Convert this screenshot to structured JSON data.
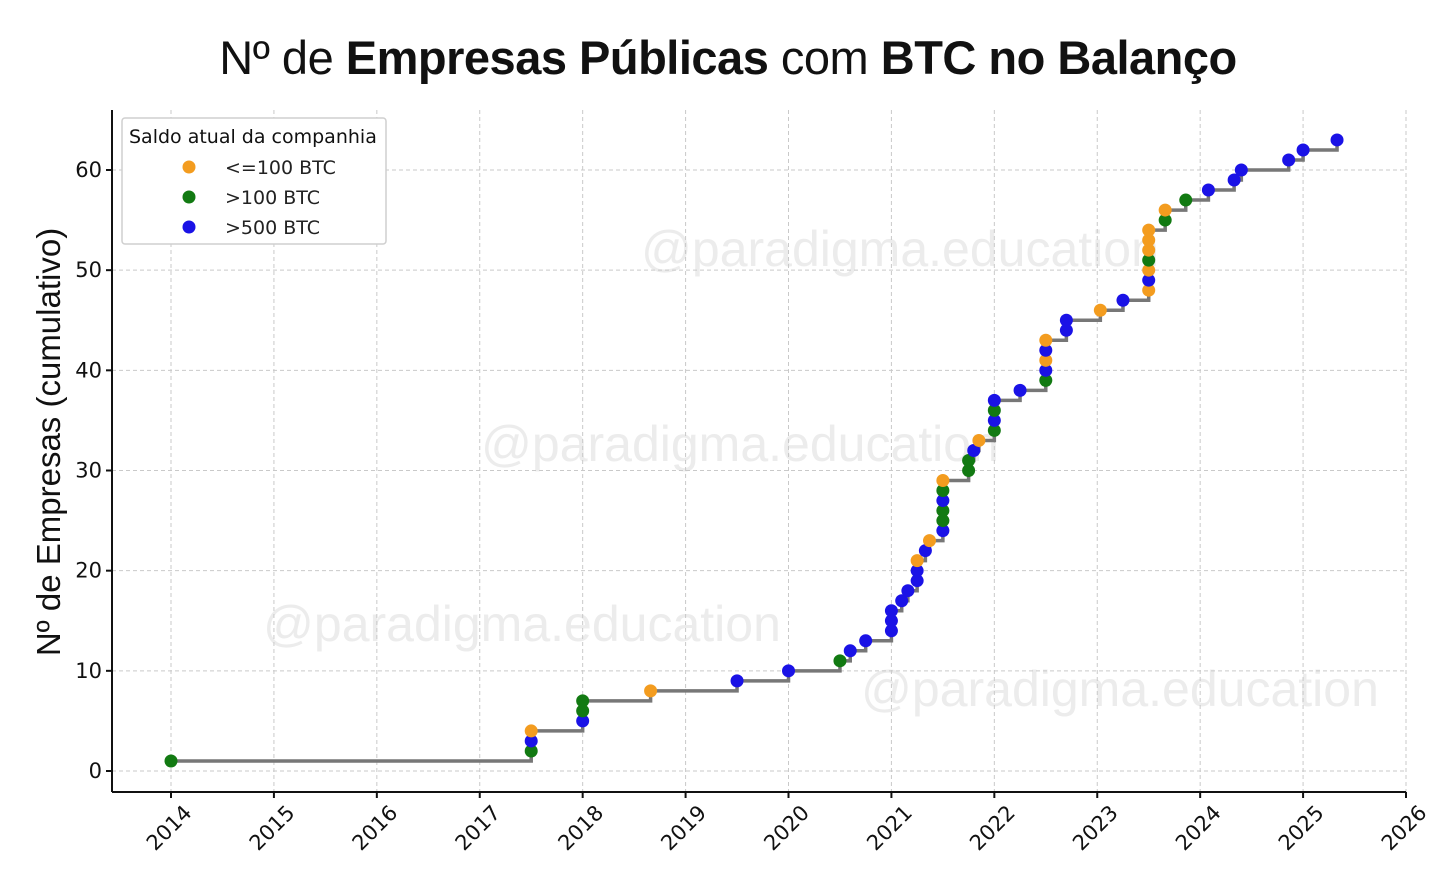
{
  "title": {
    "parts": [
      {
        "text": "Nº de ",
        "bold": false
      },
      {
        "text": "Empresas Públicas",
        "bold": true
      },
      {
        "text": " com ",
        "bold": false
      },
      {
        "text": "BTC no Balanço",
        "bold": true
      }
    ]
  },
  "watermark": "@paradigma.education",
  "colors": {
    "le100": "#f39c1f",
    "gt100": "#127a12",
    "gt500": "#1a12e6",
    "step": "#777777"
  },
  "chart_data": {
    "type": "scatter",
    "ylabel": "Nº de Empresas (cumulativo)",
    "xlim": [
      2013.42,
      2026
    ],
    "ylim": [
      -2,
      66
    ],
    "x_ticks": [
      2014,
      2015,
      2016,
      2017,
      2018,
      2019,
      2020,
      2021,
      2022,
      2023,
      2024,
      2025,
      2026
    ],
    "y_ticks": [
      0,
      10,
      20,
      30,
      40,
      50,
      60
    ],
    "legend": {
      "title": "Saldo atual da companhia",
      "position": "top-left",
      "entries": [
        {
          "key": "le100",
          "label": "<=100 BTC"
        },
        {
          "key": "gt100",
          "label": ">100 BTC"
        },
        {
          "key": "gt500",
          "label": ">500 BTC"
        }
      ]
    },
    "grid": true,
    "points": [
      {
        "x": 2014.0,
        "y": 1,
        "c": "gt100"
      },
      {
        "x": 2017.5,
        "y": 2,
        "c": "gt100"
      },
      {
        "x": 2017.5,
        "y": 3,
        "c": "gt500"
      },
      {
        "x": 2017.5,
        "y": 4,
        "c": "le100"
      },
      {
        "x": 2018.0,
        "y": 5,
        "c": "gt500"
      },
      {
        "x": 2018.0,
        "y": 6,
        "c": "gt100"
      },
      {
        "x": 2018.0,
        "y": 7,
        "c": "gt100"
      },
      {
        "x": 2018.66,
        "y": 8,
        "c": "le100"
      },
      {
        "x": 2019.5,
        "y": 9,
        "c": "gt500"
      },
      {
        "x": 2020.0,
        "y": 10,
        "c": "gt500"
      },
      {
        "x": 2020.5,
        "y": 11,
        "c": "gt100"
      },
      {
        "x": 2020.6,
        "y": 12,
        "c": "gt500"
      },
      {
        "x": 2020.75,
        "y": 13,
        "c": "gt500"
      },
      {
        "x": 2021.0,
        "y": 14,
        "c": "gt500"
      },
      {
        "x": 2021.0,
        "y": 15,
        "c": "gt500"
      },
      {
        "x": 2021.0,
        "y": 16,
        "c": "gt500"
      },
      {
        "x": 2021.1,
        "y": 17,
        "c": "gt500"
      },
      {
        "x": 2021.16,
        "y": 18,
        "c": "gt500"
      },
      {
        "x": 2021.25,
        "y": 19,
        "c": "gt500"
      },
      {
        "x": 2021.25,
        "y": 20,
        "c": "gt500"
      },
      {
        "x": 2021.25,
        "y": 21,
        "c": "le100"
      },
      {
        "x": 2021.33,
        "y": 22,
        "c": "gt500"
      },
      {
        "x": 2021.37,
        "y": 23,
        "c": "le100"
      },
      {
        "x": 2021.5,
        "y": 24,
        "c": "gt500"
      },
      {
        "x": 2021.5,
        "y": 25,
        "c": "gt100"
      },
      {
        "x": 2021.5,
        "y": 26,
        "c": "gt100"
      },
      {
        "x": 2021.5,
        "y": 27,
        "c": "gt500"
      },
      {
        "x": 2021.5,
        "y": 28,
        "c": "gt100"
      },
      {
        "x": 2021.5,
        "y": 29,
        "c": "le100"
      },
      {
        "x": 2021.75,
        "y": 30,
        "c": "gt100"
      },
      {
        "x": 2021.75,
        "y": 31,
        "c": "gt100"
      },
      {
        "x": 2021.8,
        "y": 32,
        "c": "gt500"
      },
      {
        "x": 2021.85,
        "y": 33,
        "c": "le100"
      },
      {
        "x": 2022.0,
        "y": 34,
        "c": "gt100"
      },
      {
        "x": 2022.0,
        "y": 35,
        "c": "gt500"
      },
      {
        "x": 2022.0,
        "y": 36,
        "c": "gt100"
      },
      {
        "x": 2022.0,
        "y": 37,
        "c": "gt500"
      },
      {
        "x": 2022.25,
        "y": 38,
        "c": "gt500"
      },
      {
        "x": 2022.5,
        "y": 39,
        "c": "gt100"
      },
      {
        "x": 2022.5,
        "y": 40,
        "c": "gt500"
      },
      {
        "x": 2022.5,
        "y": 41,
        "c": "le100"
      },
      {
        "x": 2022.5,
        "y": 42,
        "c": "gt500"
      },
      {
        "x": 2022.5,
        "y": 43,
        "c": "le100"
      },
      {
        "x": 2022.7,
        "y": 44,
        "c": "gt500"
      },
      {
        "x": 2022.7,
        "y": 45,
        "c": "gt500"
      },
      {
        "x": 2023.03,
        "y": 46,
        "c": "le100"
      },
      {
        "x": 2023.25,
        "y": 47,
        "c": "gt500"
      },
      {
        "x": 2023.5,
        "y": 48,
        "c": "le100"
      },
      {
        "x": 2023.5,
        "y": 49,
        "c": "gt500"
      },
      {
        "x": 2023.5,
        "y": 50,
        "c": "le100"
      },
      {
        "x": 2023.5,
        "y": 51,
        "c": "gt100"
      },
      {
        "x": 2023.5,
        "y": 52,
        "c": "le100"
      },
      {
        "x": 2023.5,
        "y": 53,
        "c": "le100"
      },
      {
        "x": 2023.5,
        "y": 54,
        "c": "le100"
      },
      {
        "x": 2023.66,
        "y": 55,
        "c": "gt100"
      },
      {
        "x": 2023.66,
        "y": 56,
        "c": "le100"
      },
      {
        "x": 2023.86,
        "y": 57,
        "c": "gt100"
      },
      {
        "x": 2024.08,
        "y": 58,
        "c": "gt500"
      },
      {
        "x": 2024.33,
        "y": 59,
        "c": "gt500"
      },
      {
        "x": 2024.4,
        "y": 60,
        "c": "gt500"
      },
      {
        "x": 2024.86,
        "y": 61,
        "c": "gt500"
      },
      {
        "x": 2025.0,
        "y": 62,
        "c": "gt500"
      },
      {
        "x": 2025.33,
        "y": 63,
        "c": "gt500"
      }
    ]
  }
}
